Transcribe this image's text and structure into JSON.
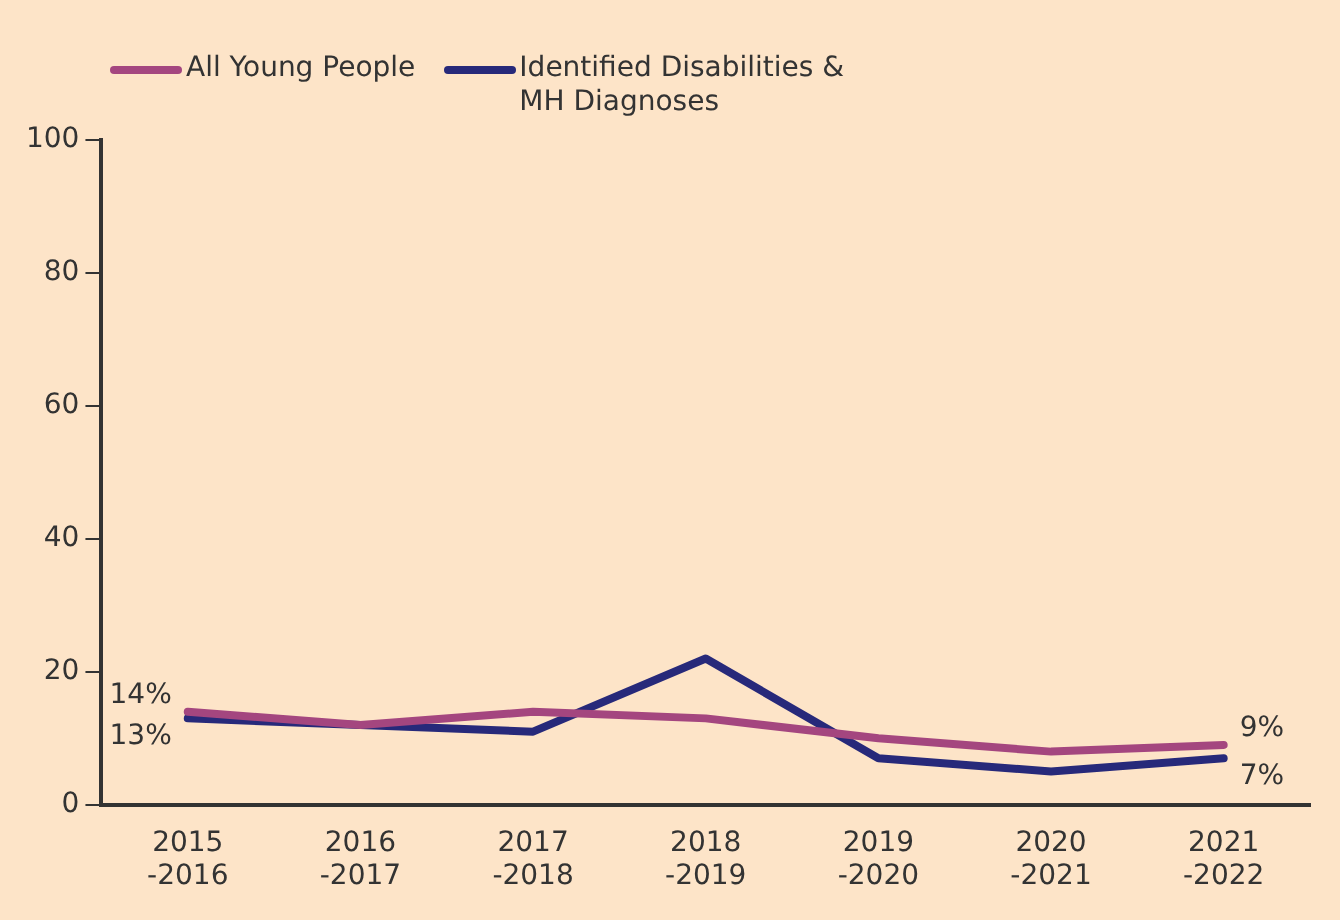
{
  "chart_data": {
    "type": "line",
    "categories": [
      "2015 -2016",
      "2016 -2017",
      "2017 -2018",
      "2018 -2019",
      "2019 -2020",
      "2020 -2021",
      "2021 -2022"
    ],
    "series": [
      {
        "name": "All Young People",
        "color": "#a4467f",
        "values": [
          14,
          12,
          14,
          13,
          10,
          8,
          9
        ],
        "value_labels": [
          "14%",
          null,
          null,
          null,
          null,
          null,
          "9%"
        ]
      },
      {
        "name": "Identified Disabilities & MH Diagnoses",
        "color": "#27297a",
        "values": [
          13,
          12,
          11,
          22,
          7,
          5,
          7
        ],
        "value_labels": [
          "13%",
          null,
          null,
          null,
          null,
          null,
          "7%"
        ]
      }
    ],
    "ylim": [
      0,
      100
    ],
    "yticks": [
      0,
      20,
      40,
      60,
      80,
      100
    ],
    "grid": false,
    "legend": "top left",
    "marker": "none",
    "line_style": "solid"
  }
}
